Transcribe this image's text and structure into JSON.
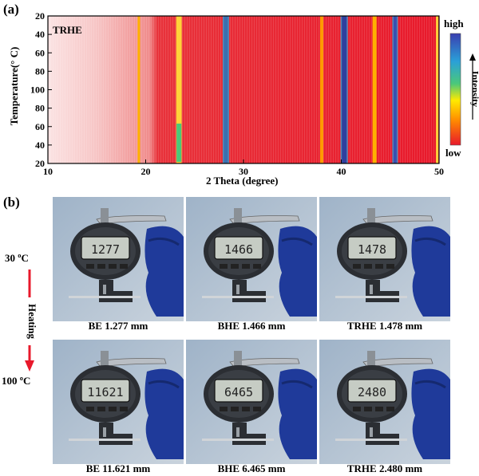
{
  "panel_a": {
    "label": "(a)",
    "chart_data": {
      "type": "heatmap",
      "title": "",
      "inset_label": "TRHE",
      "xlabel": "2 Theta (degree)",
      "ylabel": "Temperature(° C)",
      "x_ticks": [
        "10",
        "20",
        "30",
        "40",
        "50"
      ],
      "y_ticks": [
        "20",
        "40",
        "60",
        "80",
        "100",
        "80",
        "60",
        "40",
        "20"
      ],
      "xlim": [
        10,
        50
      ],
      "y_profile_description": "heating 20→100 °C then cooling 100→20 °C",
      "colorbar": {
        "high": "high",
        "low": "low",
        "label": "Intensity"
      },
      "peaks_2theta": [
        19.3,
        23.4,
        28.2,
        38.0,
        40.3,
        43.4,
        45.5,
        49.8
      ],
      "colors": {
        "low": "#e8192b",
        "mid": "#ffea00",
        "high": "#3a3fb0",
        "amorphous": "#f6c5c5"
      }
    }
  },
  "panel_b": {
    "label": "(b)",
    "temp_start": "30 ºC",
    "temp_end": "100 ºC",
    "arrow_label": "Heating",
    "row_top": [
      {
        "display": "1277",
        "caption": "BE 1.277 mm"
      },
      {
        "display": "1466",
        "caption": "BHE 1.466 mm"
      },
      {
        "display": "1478",
        "caption": "TRHE 1.478 mm"
      }
    ],
    "row_bottom": [
      {
        "display": "11621",
        "caption": "BE 11.621 mm"
      },
      {
        "display": "6465",
        "caption": "BHE 6.465 mm"
      },
      {
        "display": "2480",
        "caption": "TRHE 2.480 mm"
      }
    ]
  }
}
